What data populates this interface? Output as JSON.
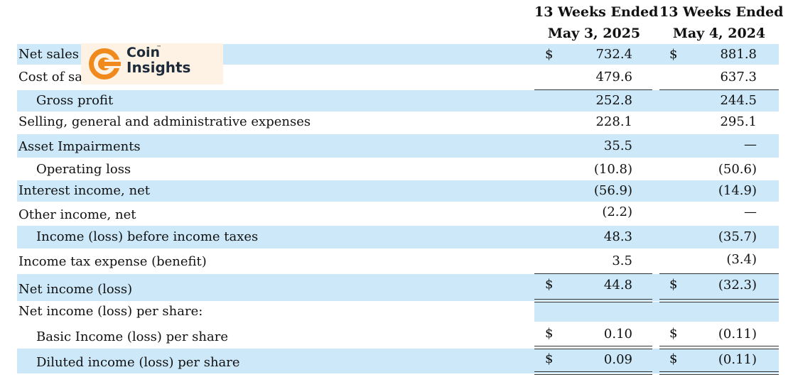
{
  "header": {
    "col1_line1": "13 Weeks Ended",
    "col1_line2": "May 3, 2025",
    "col2_line1": "13 Weeks Ended",
    "col2_line2": "May 4, 2024"
  },
  "rows": [
    {
      "label": "Net sales",
      "dollar1": "$",
      "v1": "732.4",
      "dollar2": "$",
      "v2": "881.8"
    },
    {
      "label": "Cost of sal",
      "v1": "479.6",
      "v2": "637.3"
    },
    {
      "label": "Gross profit",
      "v1": "252.8",
      "v2": "244.5"
    },
    {
      "label": "Selling, general and administrative expenses",
      "v1": "228.1",
      "v2": "295.1"
    },
    {
      "label": "Asset Impairments",
      "v1": "35.5",
      "v2": "—"
    },
    {
      "label": "Operating loss",
      "v1": "(10.8)",
      "v2": "(50.6)"
    },
    {
      "label": "Interest income, net",
      "v1": "(56.9)",
      "v2": "(14.9)"
    },
    {
      "label": "Other income, net",
      "v1": "(2.2)",
      "v2": "—"
    },
    {
      "label": "Income (loss) before income taxes",
      "v1": "48.3",
      "v2": "(35.7)"
    },
    {
      "label": "Income tax expense (benefit)",
      "v1": "3.5",
      "v2": "(3.4)"
    },
    {
      "label": "Net income (loss)",
      "dollar1": "$",
      "v1": "44.8",
      "dollar2": "$",
      "v2": "(32.3)"
    },
    {
      "label": "Net income (loss) per share:"
    },
    {
      "label": "Basic Income (loss) per share",
      "dollar1": "$",
      "v1": "0.10",
      "dollar2": "$",
      "v2": "(0.11)"
    },
    {
      "label": "Diluted income (loss) per share",
      "dollar1": "$",
      "v1": "0.09",
      "dollar2": "$",
      "v2": "(0.11)"
    }
  ],
  "watermark": {
    "line1": "Coin",
    "line2": "Insights",
    "tm": "™",
    "icon": "coin-insights-logo-icon",
    "accent_color": "#f08a1c"
  }
}
